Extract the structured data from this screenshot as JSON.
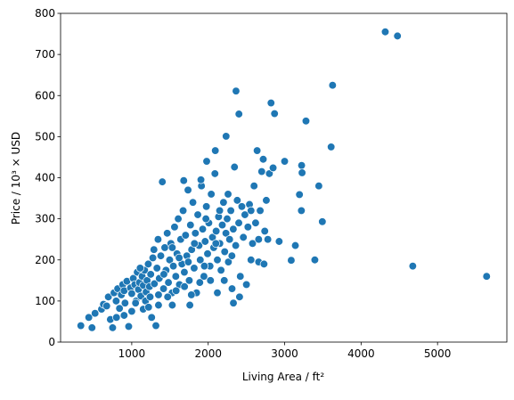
{
  "chart_data": {
    "type": "scatter",
    "xlabel": "Living Area / ft²",
    "ylabel": "Price / 10³ × USD",
    "color": "#1f77b4",
    "xlim": [
      69,
      5907
    ],
    "ylim": [
      0,
      800
    ],
    "xticks": [
      1000,
      2000,
      3000,
      4000,
      5000
    ],
    "yticks": [
      0,
      100,
      200,
      300,
      400,
      500,
      600,
      700,
      800
    ],
    "x": [
      334,
      438,
      480,
      520,
      605,
      630,
      672,
      694,
      720,
      750,
      768,
      796,
      816,
      840,
      864,
      882,
      900,
      912,
      936,
      960,
      984,
      1000,
      1020,
      1040,
      1056,
      1072,
      1088,
      1100,
      1120,
      1136,
      1152,
      1168,
      1188,
      1200,
      1216,
      1232,
      1248,
      1260,
      1276,
      1296,
      1316,
      1330,
      1344,
      1360,
      1380,
      1400,
      1416,
      1432,
      1448,
      1464,
      1480,
      1496,
      1512,
      1528,
      1544,
      1560,
      1576,
      1592,
      1608,
      1624,
      1640,
      1656,
      1672,
      1688,
      1704,
      1720,
      1736,
      1752,
      1768,
      1784,
      1800,
      1816,
      1832,
      1848,
      1864,
      1880,
      1896,
      1912,
      1928,
      1944,
      1960,
      1976,
      1992,
      2008,
      2024,
      2040,
      2056,
      2072,
      2088,
      2104,
      2120,
      2136,
      2152,
      2168,
      2184,
      2200,
      2216,
      2232,
      2248,
      2264,
      2280,
      2296,
      2312,
      2328,
      2344,
      2360,
      2380,
      2400,
      2420,
      2440,
      2460,
      2480,
      2500,
      2520,
      2540,
      2560,
      2580,
      2600,
      2620,
      2640,
      2660,
      2680,
      2700,
      2720,
      2740,
      2760,
      2780,
      2800,
      2822,
      2849,
      2868,
      2928,
      3000,
      3086,
      3140,
      3194,
      3219,
      3222,
      3228,
      3279,
      3395,
      3447,
      3493,
      3608,
      3627,
      4316,
      4476,
      4676,
      5642,
      1050,
      1110,
      1180,
      1240,
      1290,
      1350,
      1420,
      1470,
      1530,
      1580,
      1620,
      1690,
      1740,
      1780,
      1820,
      1890,
      1950,
      1970,
      2030,
      2100,
      2150,
      2210,
      2260,
      2310,
      2364,
      2402,
      2234,
      2093,
      1980,
      1905,
      1680,
      2560,
      2660,
      2730,
      1760,
      1530,
      1350,
      2410,
      2330,
      2120,
      900,
      1000,
      1150,
      1220,
      800
    ],
    "values": [
      40,
      60,
      35,
      70,
      80,
      92,
      88,
      110,
      55,
      35,
      120,
      100,
      130,
      82,
      115,
      140,
      125,
      95,
      148,
      38,
      132,
      118,
      155,
      140,
      100,
      170,
      128,
      145,
      112,
      160,
      138,
      175,
      122,
      150,
      190,
      135,
      165,
      60,
      205,
      142,
      40,
      180,
      250,
      155,
      210,
      390,
      130,
      230,
      175,
      265,
      145,
      200,
      240,
      120,
      185,
      280,
      160,
      215,
      300,
      140,
      250,
      190,
      320,
      170,
      260,
      210,
      370,
      150,
      285,
      225,
      340,
      180,
      265,
      120,
      310,
      235,
      200,
      380,
      275,
      160,
      245,
      330,
      215,
      290,
      185,
      360,
      255,
      230,
      410,
      270,
      200,
      305,
      240,
      175,
      285,
      340,
      220,
      265,
      300,
      195,
      250,
      320,
      130,
      275,
      426,
      235,
      345,
      290,
      160,
      330,
      255,
      310,
      140,
      280,
      335,
      200,
      240,
      380,
      290,
      466,
      250,
      320,
      415,
      445,
      270,
      345,
      250,
      410,
      582,
      424,
      556,
      245,
      440,
      199,
      235,
      359,
      320,
      430,
      412,
      538,
      200,
      380,
      293,
      475,
      625,
      755,
      745,
      185,
      160,
      95,
      180,
      100,
      110,
      225,
      115,
      165,
      110,
      230,
      125,
      205,
      135,
      195,
      115,
      240,
      145,
      185,
      300,
      150,
      240,
      320,
      150,
      360,
      210,
      611,
      555,
      501,
      466,
      440,
      395,
      393,
      320,
      195,
      190,
      90,
      90,
      90,
      110,
      95,
      120,
      65,
      75,
      80,
      85,
      60
    ]
  }
}
